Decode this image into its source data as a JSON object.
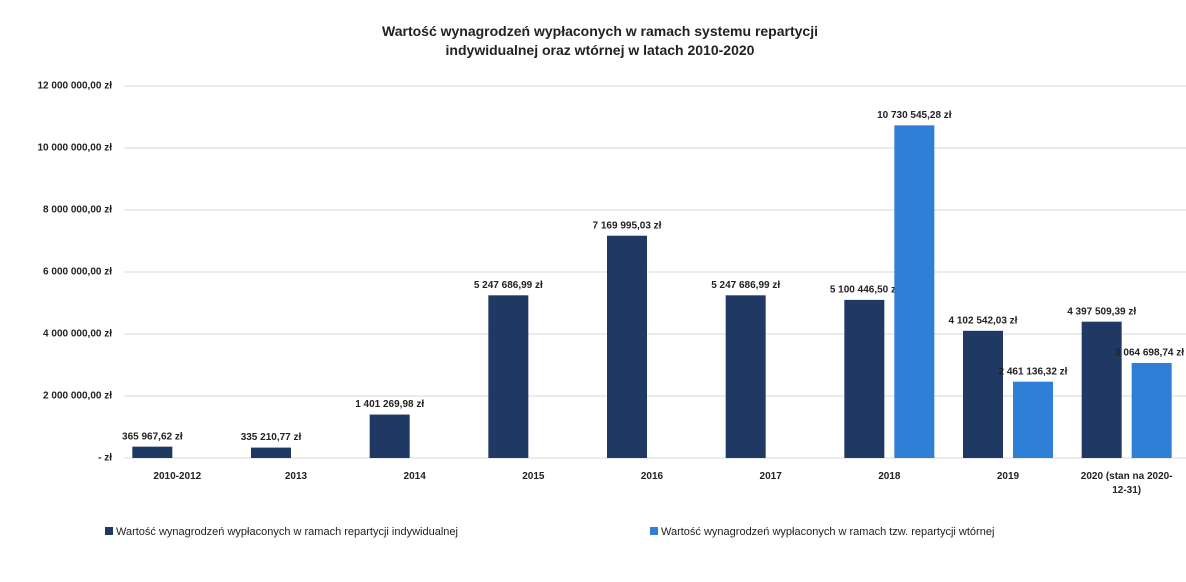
{
  "chart_data": {
    "type": "bar",
    "title": "Wartość wynagrodzeń wypłaconych w ramach systemu repartycji indywidualnej oraz wtórnej w latach 2010-2020",
    "categories": [
      "2010-2012",
      "2013",
      "2014",
      "2015",
      "2016",
      "2017",
      "2018",
      "2019",
      "2020 (stan na 2020-12-31)"
    ],
    "series": [
      {
        "name": "Wartość wynagrodzeń wypłaconych w ramach repartycji indywidualnej",
        "color": "#1f3864",
        "values": [
          365967.62,
          335210.77,
          1401269.98,
          5247686.99,
          7169995.03,
          5247686.99,
          5100446.5,
          4102542.03,
          4397509.39
        ],
        "value_labels": [
          "365 967,62 zł",
          "335 210,77 zł",
          "1 401 269,98 zł",
          "5 247 686,99 zł",
          "7 169 995,03 zł",
          "5 247 686,99 zł",
          "5 100 446,50 zł",
          "4 102 542,03 zł",
          "4 397 509,39 zł"
        ]
      },
      {
        "name": "Wartość wynagrodzeń wypłaconych w ramach tzw. repartycji wtórnej",
        "color": "#2e7fd6",
        "values": [
          null,
          null,
          null,
          null,
          null,
          null,
          10730545.28,
          2461136.32,
          3064698.74
        ],
        "value_labels": [
          null,
          null,
          null,
          null,
          null,
          null,
          "10 730 545,28 zł",
          "2 461 136,32 zł",
          "3 064 698,74 zł"
        ]
      }
    ],
    "ylim": [
      0,
      12000000
    ],
    "yticks": [
      {
        "value": 0,
        "label": "-   zł"
      },
      {
        "value": 2000000,
        "label": "2 000 000,00 zł"
      },
      {
        "value": 4000000,
        "label": "4 000 000,00 zł"
      },
      {
        "value": 6000000,
        "label": "6 000 000,00 zł"
      },
      {
        "value": 8000000,
        "label": "8 000 000,00 zł"
      },
      {
        "value": 10000000,
        "label": "10 000 000,00 zł"
      },
      {
        "value": 12000000,
        "label": "12 000 000,00 zł"
      }
    ],
    "grid": true,
    "legend": "bottom"
  }
}
